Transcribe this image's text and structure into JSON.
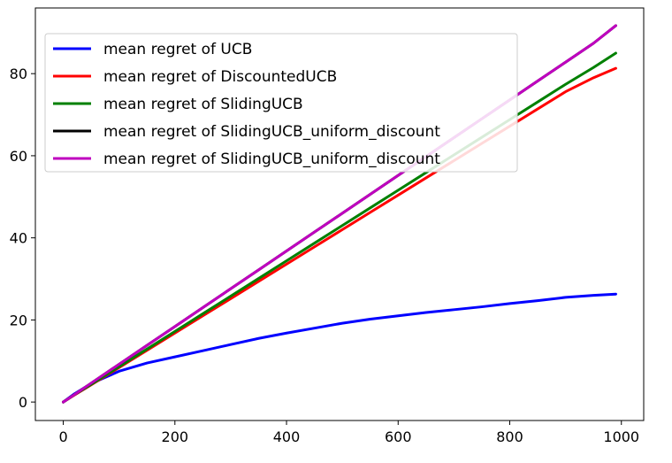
{
  "chart_data": {
    "type": "line",
    "title": "",
    "xlabel": "",
    "ylabel": "",
    "xlim": [
      -50,
      1040
    ],
    "ylim": [
      -4.5,
      96
    ],
    "xticks": [
      0,
      200,
      400,
      600,
      800,
      1000
    ],
    "yticks": [
      0,
      20,
      40,
      60,
      80
    ],
    "grid": false,
    "legend_position": "top-left",
    "x": [
      0,
      20,
      50,
      100,
      150,
      200,
      250,
      300,
      350,
      400,
      450,
      500,
      550,
      600,
      650,
      700,
      750,
      800,
      850,
      900,
      950,
      990
    ],
    "series": [
      {
        "name": "mean regret of UCB",
        "color": "#0000ff",
        "values": [
          0.0,
          2.0,
          4.5,
          7.5,
          9.5,
          11.0,
          12.5,
          14.0,
          15.5,
          16.8,
          18.0,
          19.2,
          20.2,
          21.0,
          21.8,
          22.5,
          23.2,
          24.0,
          24.7,
          25.5,
          26.0,
          26.3
        ]
      },
      {
        "name": "mean regret of DiscountedUCB",
        "color": "#ff0000",
        "values": [
          0.0,
          1.7,
          4.2,
          8.4,
          12.6,
          16.8,
          21.0,
          25.2,
          29.4,
          33.6,
          37.8,
          42.0,
          46.2,
          50.4,
          54.6,
          58.8,
          63.0,
          67.2,
          71.4,
          75.6,
          79.0,
          81.3
        ]
      },
      {
        "name": "mean regret of SlidingUCB",
        "color": "#008000",
        "values": [
          0.0,
          1.8,
          4.3,
          8.6,
          12.9,
          17.2,
          21.5,
          25.8,
          30.1,
          34.4,
          38.7,
          43.0,
          47.3,
          51.6,
          55.9,
          60.2,
          64.5,
          68.8,
          73.1,
          77.4,
          81.5,
          85.0
        ]
      },
      {
        "name": "mean regret of SlidingUCB_uniform_discount",
        "color": "#000000",
        "values": [
          0.0,
          1.8,
          4.6,
          9.2,
          13.8,
          18.4,
          23.0,
          27.6,
          32.2,
          36.8,
          41.4,
          46.0,
          50.6,
          55.2,
          59.8,
          64.4,
          69.0,
          73.6,
          78.2,
          82.8,
          87.4,
          91.7
        ]
      },
      {
        "name": "mean regret of SlidingUCB_uniform_discount",
        "color": "#bf00bf",
        "values": [
          0.0,
          1.8,
          4.6,
          9.2,
          13.8,
          18.4,
          23.0,
          27.6,
          32.2,
          36.8,
          41.4,
          46.0,
          50.6,
          55.2,
          59.8,
          64.4,
          69.0,
          73.6,
          78.2,
          82.8,
          87.4,
          91.7
        ]
      }
    ]
  }
}
